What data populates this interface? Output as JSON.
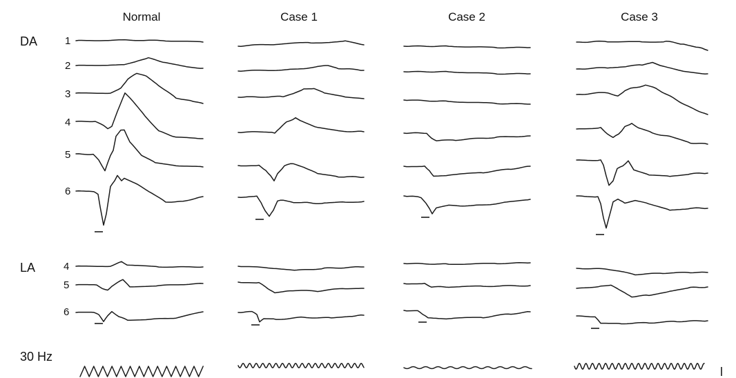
{
  "columns": [
    "Normal",
    "Case 1",
    "Case 2",
    "Case 3"
  ],
  "sections": {
    "da": {
      "label": "DA",
      "rows": [
        "1",
        "2",
        "3",
        "4",
        "5",
        "6"
      ]
    },
    "la": {
      "label": "LA",
      "rows": [
        "4",
        "5",
        "6"
      ]
    },
    "flicker": {
      "label": "30 Hz"
    }
  }
}
